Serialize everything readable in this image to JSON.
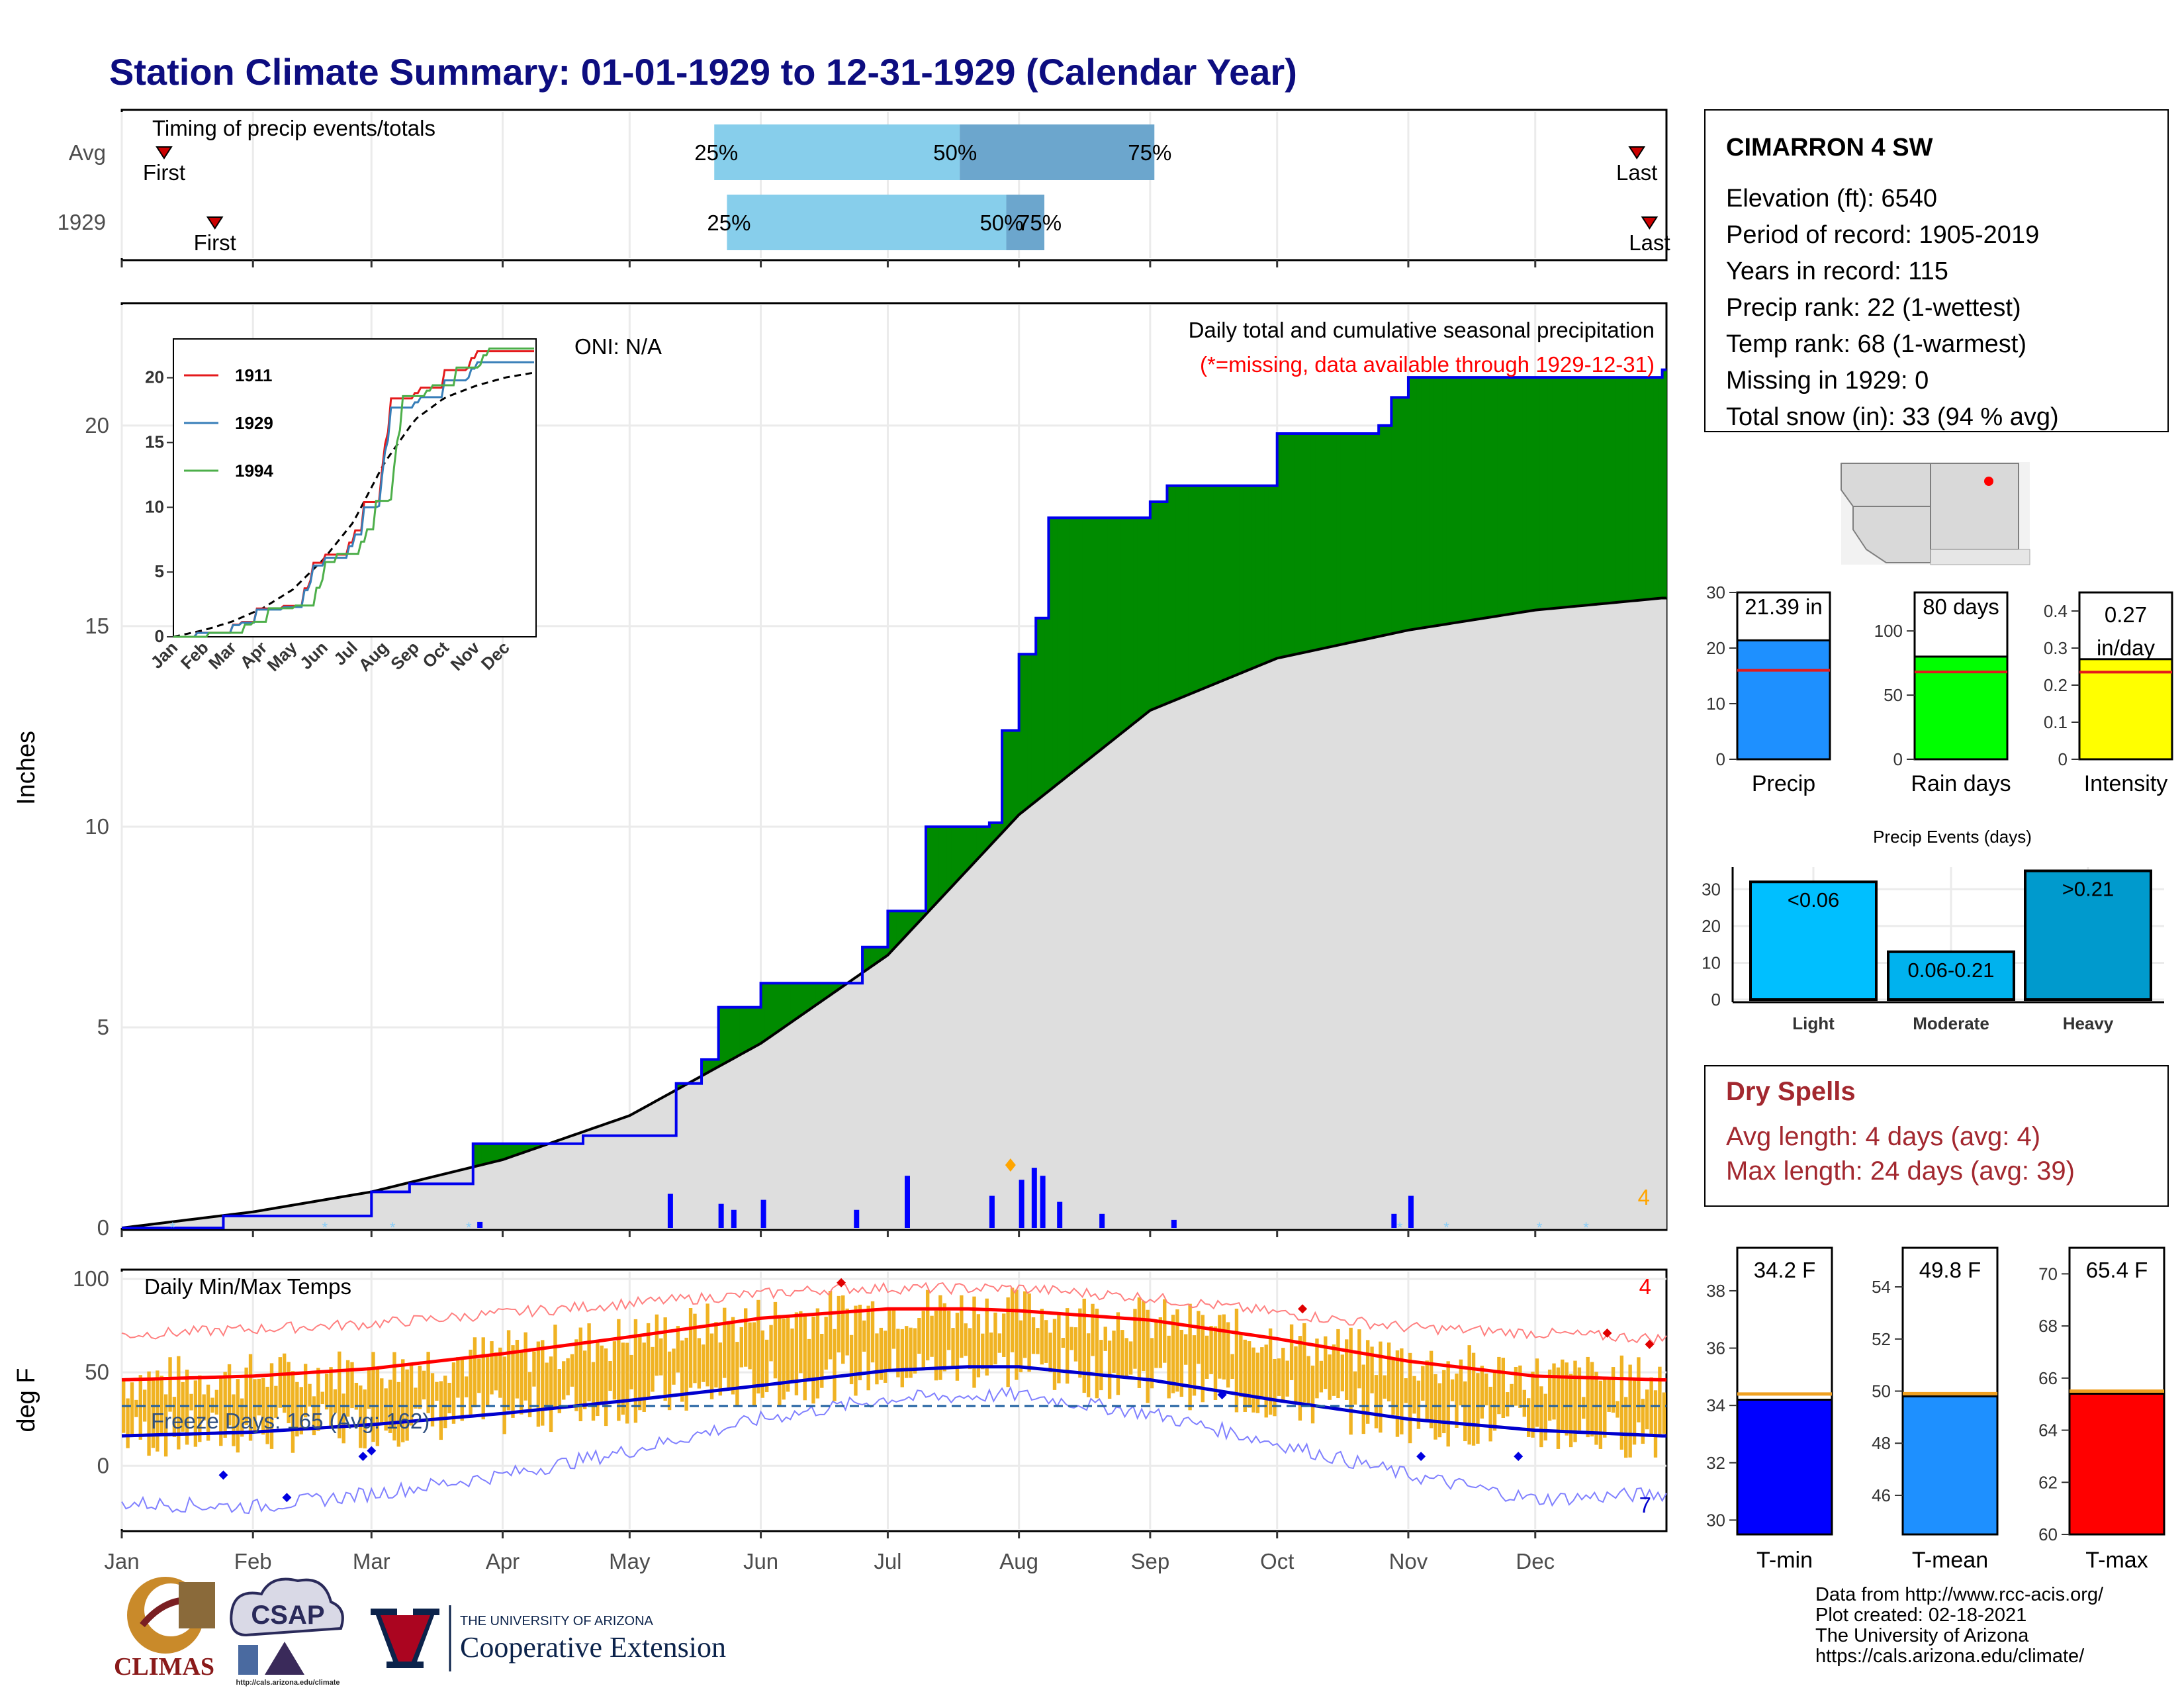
{
  "title": "Station Climate Summary: 01-01-1929 to 12-31-1929 (Calendar Year)",
  "timing": {
    "label": "Timing of precip events/totals",
    "rows": [
      {
        "name": "Avg",
        "first_doy": 10,
        "last_doy": 358,
        "p25_doy": 140,
        "p50_doy": 198,
        "p75_doy": 244
      },
      {
        "name": "1929",
        "first_doy": 22,
        "last_doy": 361,
        "p25_doy": 143,
        "p50_doy": 209,
        "p75_doy": 218
      }
    ],
    "first_label": "First",
    "last_label": "Last",
    "p25_label": "25%",
    "p50_label": "50%",
    "p75_label": "75%"
  },
  "precip_panel": {
    "oni": "ONI: N/A",
    "header1": "Daily total and cumulative seasonal precipitation",
    "header2": "(*=missing, data available through 1929-12-31)",
    "ylabel": "Inches",
    "corner_count": "4"
  },
  "temp_panel": {
    "label": "Daily Min/Max Temps",
    "ylabel": "deg F",
    "freeze": "Freeze Days: 165 (Avg: 162)",
    "count_top": "4",
    "count_bottom": "7"
  },
  "months": [
    "Jan",
    "Feb",
    "Mar",
    "Apr",
    "May",
    "Jun",
    "Jul",
    "Aug",
    "Sep",
    "Oct",
    "Nov",
    "Dec"
  ],
  "inset": {
    "series": [
      {
        "name": "1911",
        "color": "#e41a1c"
      },
      {
        "name": "1929",
        "color": "#377eb8"
      },
      {
        "name": "1994",
        "color": "#4daf4a"
      }
    ],
    "months": [
      "Jan",
      "Feb",
      "Mar",
      "Apr",
      "May",
      "Jun",
      "Jul",
      "Aug",
      "Sep",
      "Oct",
      "Nov",
      "Dec"
    ]
  },
  "station": {
    "name": "CIMARRON 4 SW",
    "lines": [
      "Elevation (ft): 6540",
      "Period of record: 1905-2019",
      "Years in record: 115",
      "Precip rank: 22 (1-wettest)",
      "Temp rank: 68 (1-warmest)",
      "Missing in 1929: 0",
      "Total snow (in): 33 (94 % avg)"
    ]
  },
  "summary_bars": [
    {
      "label": "Precip",
      "value_text": "21.39 in",
      "value": 21.39,
      "avg": 16.0,
      "ymax": 30,
      "ticks": [
        0,
        10,
        20,
        30
      ],
      "color": "#1e90ff"
    },
    {
      "label": "Rain days",
      "value_text": "80 days",
      "value": 80,
      "avg": 68,
      "ymax": 130,
      "ticks": [
        0,
        50,
        100
      ],
      "color": "#00ff00"
    },
    {
      "label": "Intensity",
      "value_text": "0.27 in/day",
      "value_line1": "0.27",
      "value_line2": "in/day",
      "value": 0.27,
      "avg": 0.235,
      "ymax": 0.45,
      "ticks": [
        0.0,
        0.1,
        0.2,
        0.3,
        0.4
      ],
      "color": "#ffff00"
    }
  ],
  "precip_events": {
    "title": "Precip Events (days)",
    "categories": [
      "Light",
      "Moderate",
      "Heavy"
    ],
    "labels": [
      "<0.06",
      "0.06-0.21",
      ">0.21"
    ],
    "values": [
      32,
      13,
      35
    ],
    "colors": [
      "#00bfff",
      "#00b2ee",
      "#009acd"
    ],
    "ticks": [
      0,
      10,
      20,
      30
    ]
  },
  "dry_spells": {
    "title": "Dry Spells",
    "avg_length": "Avg length: 4 days (avg: 4)",
    "max_length": "Max length: 24 days (avg: 39)"
  },
  "temp_bars": [
    {
      "label": "T-min",
      "value_text": "34.2 F",
      "value": 34.2,
      "avg": 34.4,
      "ylim": [
        29.5,
        39.5
      ],
      "ticks": [
        30,
        32,
        34,
        36,
        38
      ],
      "color": "#0000ff"
    },
    {
      "label": "T-mean",
      "value_text": "49.8 F",
      "value": 49.8,
      "avg": 49.9,
      "ylim": [
        44.5,
        55.5
      ],
      "ticks": [
        46,
        48,
        50,
        52,
        54
      ],
      "color": "#1e90ff"
    },
    {
      "label": "T-max",
      "value_text": "65.4 F",
      "value": 65.4,
      "avg": 65.5,
      "ylim": [
        60,
        71
      ],
      "ticks": [
        60,
        62,
        64,
        66,
        68,
        70
      ],
      "color": "#ff0000"
    }
  ],
  "footer": {
    "lines": [
      "Data from http://www.rcc-acis.org/",
      "Plot created: 02-18-2021",
      "The University of Arizona",
      "https://cals.arizona.edu/climate/"
    ],
    "logo_climas": "CLIMAS",
    "logo_csap": "CSAP",
    "logo_csap_url": "http://cals.arizona.edu/climate",
    "logo_ua_small": "THE UNIVERSITY OF ARIZONA",
    "logo_ua_big": "Cooperative Extension"
  },
  "chart_data": [
    {
      "type": "area",
      "title": "Daily total and cumulative seasonal precipitation",
      "ylabel": "Inches",
      "ylim": [
        0,
        23
      ],
      "yticks": [
        0,
        5,
        10,
        15,
        20
      ],
      "x_type": "date",
      "x_range": [
        "1929-01-01",
        "1929-12-31"
      ],
      "series": [
        {
          "name": "1929",
          "x": [
            "1929-01-01",
            "1929-01-25",
            "1929-02-20",
            "1929-03-01",
            "1929-03-10",
            "1929-03-25",
            "1929-04-05",
            "1929-04-20",
            "1929-05-05",
            "1929-05-12",
            "1929-05-18",
            "1929-05-22",
            "1929-05-28",
            "1929-06-01",
            "1929-06-20",
            "1929-06-25",
            "1929-07-01",
            "1929-07-10",
            "1929-07-25",
            "1929-07-28",
            "1929-08-01",
            "1929-08-05",
            "1929-08-08",
            "1929-08-12",
            "1929-09-01",
            "1929-09-05",
            "1929-10-01",
            "1929-10-25",
            "1929-10-28",
            "1929-11-01",
            "1929-12-31"
          ],
          "y": [
            0.0,
            0.3,
            0.3,
            0.9,
            1.1,
            2.1,
            2.1,
            2.3,
            2.3,
            3.6,
            4.2,
            5.5,
            5.5,
            6.1,
            6.1,
            7.0,
            7.9,
            10.0,
            10.1,
            12.4,
            14.3,
            15.2,
            17.7,
            17.7,
            18.1,
            18.5,
            19.8,
            20.0,
            20.7,
            21.2,
            21.39
          ]
        },
        {
          "name": "Avg",
          "x": [
            "1929-01-01",
            "1929-02-01",
            "1929-03-01",
            "1929-04-01",
            "1929-05-01",
            "1929-06-01",
            "1929-07-01",
            "1929-08-01",
            "1929-09-01",
            "1929-10-01",
            "1929-11-01",
            "1929-12-01",
            "1929-12-31"
          ],
          "y": [
            0.0,
            0.4,
            0.9,
            1.7,
            2.8,
            4.6,
            6.8,
            10.3,
            12.9,
            14.2,
            14.9,
            15.4,
            15.7
          ]
        }
      ],
      "daily_bars": {
        "x": [
          "1929-03-26",
          "1929-05-10",
          "1929-05-22",
          "1929-05-25",
          "1929-06-01",
          "1929-06-23",
          "1929-07-05",
          "1929-07-25",
          "1929-08-01",
          "1929-08-04",
          "1929-08-06",
          "1929-08-10",
          "1929-08-20",
          "1929-09-06",
          "1929-10-28",
          "1929-11-01"
        ],
        "y": [
          0.15,
          0.85,
          0.6,
          0.45,
          0.7,
          0.45,
          1.3,
          0.8,
          1.2,
          1.5,
          1.3,
          0.65,
          0.35,
          0.2,
          0.35,
          0.8
        ]
      }
    },
    {
      "type": "line",
      "title": "Daily Min/Max Temps",
      "ylabel": "deg F",
      "ylim": [
        -35,
        105
      ],
      "yticks": [
        0,
        50,
        100
      ],
      "x_type": "date",
      "series": [
        {
          "name": "avg max",
          "x": [
            "1929-01-01",
            "1929-02-01",
            "1929-03-01",
            "1929-04-01",
            "1929-05-01",
            "1929-06-01",
            "1929-07-01",
            "1929-07-20",
            "1929-08-01",
            "1929-09-01",
            "1929-10-01",
            "1929-11-01",
            "1929-12-01",
            "1929-12-31"
          ],
          "y": [
            46,
            48,
            52,
            60,
            69,
            79,
            84,
            84,
            83,
            78,
            68,
            56,
            48,
            46
          ]
        },
        {
          "name": "avg min",
          "x": [
            "1929-01-01",
            "1929-02-01",
            "1929-03-01",
            "1929-04-01",
            "1929-05-01",
            "1929-06-01",
            "1929-07-01",
            "1929-07-20",
            "1929-08-01",
            "1929-09-01",
            "1929-10-01",
            "1929-11-01",
            "1929-12-01",
            "1929-12-31"
          ],
          "y": [
            16,
            18,
            22,
            28,
            35,
            43,
            51,
            53,
            53,
            46,
            35,
            25,
            19,
            16
          ]
        },
        {
          "name": "record max",
          "x": [
            "1929-01-01",
            "1929-03-01",
            "1929-05-01",
            "1929-06-20",
            "1929-08-01",
            "1929-09-01",
            "1929-10-01",
            "1929-11-01",
            "1929-12-31"
          ],
          "y": [
            70,
            76,
            87,
            95,
            95,
            90,
            82,
            74,
            68
          ]
        },
        {
          "name": "record min",
          "x": [
            "1929-01-01",
            "1929-02-01",
            "1929-03-01",
            "1929-04-01",
            "1929-05-01",
            "1929-06-01",
            "1929-07-01",
            "1929-08-01",
            "1929-09-01",
            "1929-10-01",
            "1929-11-01",
            "1929-12-01",
            "1929-12-31"
          ],
          "y": [
            -20,
            -22,
            -15,
            -5,
            8,
            25,
            36,
            38,
            28,
            12,
            -5,
            -18,
            -15
          ]
        },
        {
          "name": "freeze",
          "x": [
            "1929-01-01",
            "1929-12-31"
          ],
          "y": [
            32,
            32
          ]
        }
      ]
    }
  ]
}
